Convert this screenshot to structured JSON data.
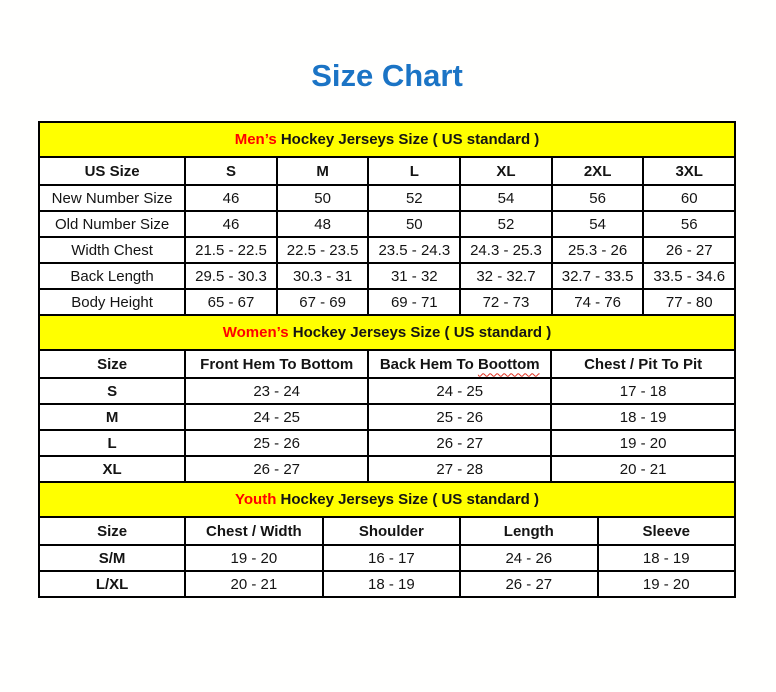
{
  "title": {
    "text": "Size Chart"
  },
  "colors": {
    "title_blue": "#1b74c5",
    "band_yellow": "#ffff00",
    "accent_red": "#ff0000",
    "border_black": "#000000",
    "background": "#fffffe"
  },
  "sections": [
    {
      "id": "mens",
      "band": {
        "highlight": "Men’s",
        "rest": " Hockey Jerseys Size ( US standard )"
      },
      "columns": [
        "US Size",
        "S",
        "M",
        "L",
        "XL",
        "2XL",
        "3XL"
      ],
      "rows": [
        {
          "label": "New Number Size",
          "values": [
            "46",
            "50",
            "52",
            "54",
            "56",
            "60"
          ]
        },
        {
          "label": "Old Number Size",
          "values": [
            "46",
            "48",
            "50",
            "52",
            "54",
            "56"
          ]
        },
        {
          "label": "Width Chest",
          "values": [
            "21.5 - 22.5",
            "22.5 - 23.5",
            "23.5 - 24.3",
            "24.3 - 25.3",
            "25.3 - 26",
            "26 - 27"
          ]
        },
        {
          "label": "Back Length",
          "values": [
            "29.5 - 30.3",
            "30.3 - 31",
            "31 - 32",
            "32 - 32.7",
            "32.7 - 33.5",
            "33.5 - 34.6"
          ]
        },
        {
          "label": "Body Height",
          "values": [
            "65 - 67",
            "67 - 69",
            "69 - 71",
            "72 - 73",
            "74 - 76",
            "77 - 80"
          ]
        }
      ]
    },
    {
      "id": "womens",
      "band": {
        "highlight": "Women’s",
        "rest": " Hockey Jerseys Size ( US standard )"
      },
      "columns": [
        "Size",
        "Front Hem To Bottom",
        "Back Hem To Boottom",
        "Chest / Pit To Pit"
      ],
      "spellcheck_underline": {
        "column": 2,
        "word": "Boottom"
      },
      "rows": [
        {
          "label": "S",
          "values": [
            "23 - 24",
            "24 - 25",
            "17 - 18"
          ]
        },
        {
          "label": "M",
          "values": [
            "24 - 25",
            "25 - 26",
            "18 - 19"
          ]
        },
        {
          "label": "L",
          "values": [
            "25 - 26",
            "26 - 27",
            "19 - 20"
          ]
        },
        {
          "label": "XL",
          "values": [
            "26 - 27",
            "27 - 28",
            "20 - 21"
          ]
        }
      ]
    },
    {
      "id": "youth",
      "band": {
        "highlight": "Youth",
        "rest": " Hockey Jerseys Size ( US standard )"
      },
      "columns": [
        "Size",
        "Chest / Width",
        "Shoulder",
        "Length",
        "Sleeve"
      ],
      "rows": [
        {
          "label": "S/M",
          "values": [
            "19 - 20",
            "16 - 17",
            "24 - 26",
            "18 - 19"
          ]
        },
        {
          "label": "L/XL",
          "values": [
            "20 - 21",
            "18 - 19",
            "26 - 27",
            "19 - 20"
          ]
        }
      ]
    }
  ]
}
